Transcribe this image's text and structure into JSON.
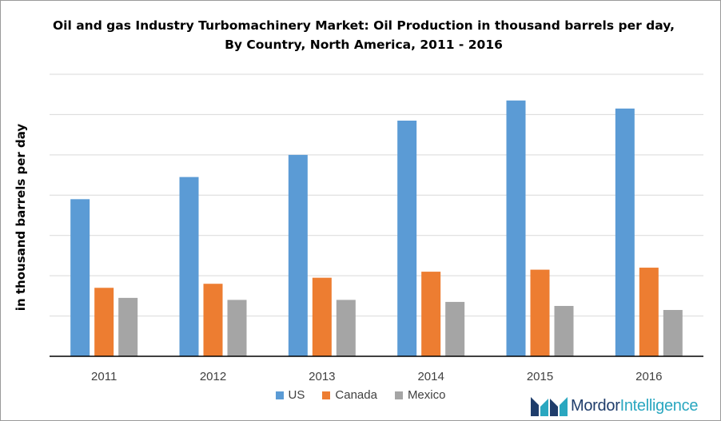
{
  "chart_data": {
    "type": "bar",
    "title": "Oil and gas Industry Turbomachinery Market: Oil Production in thousand barrels per day, By Country, North America, 2011 - 2016",
    "xlabel": "",
    "ylabel": "in thousand barrels per day",
    "categories": [
      "2011",
      "2012",
      "2013",
      "2014",
      "2015",
      "2016"
    ],
    "series": [
      {
        "name": "US",
        "color": "#5b9bd5",
        "values": [
          7.8,
          8.9,
          10.0,
          11.7,
          12.7,
          12.3
        ]
      },
      {
        "name": "Canada",
        "color": "#ed7d31",
        "values": [
          3.4,
          3.6,
          3.9,
          4.2,
          4.3,
          4.4
        ]
      },
      {
        "name": "Mexico",
        "color": "#a5a5a5",
        "values": [
          2.9,
          2.8,
          2.8,
          2.7,
          2.5,
          2.3
        ]
      }
    ],
    "ylim": [
      0,
      14
    ],
    "y_ticks_shown": false,
    "grid": true,
    "legend_position": "bottom"
  },
  "branding": {
    "logo_text_bold": "Mordor",
    "logo_text_light": "Intelligence"
  }
}
